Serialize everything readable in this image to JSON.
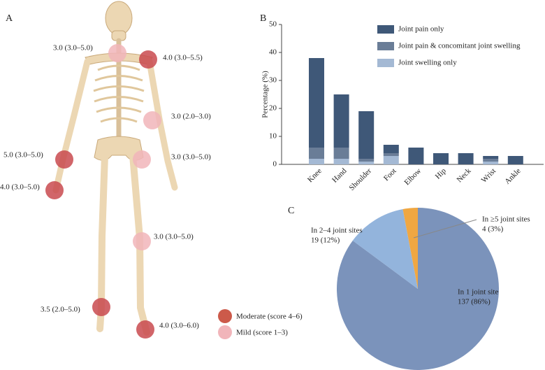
{
  "panel_labels": [
    "A",
    "B",
    "C"
  ],
  "skeleton": {
    "markers": [
      {
        "label": "3.0 (3.0–5.0)",
        "color": "#f1b5ba"
      },
      {
        "label": "4.0 (3.0–5.5)",
        "color": "#c94a4f"
      },
      {
        "label": "3.0 (2.0–3.0)",
        "color": "#f1b5ba"
      },
      {
        "label": "5.0 (3.0–5.0)",
        "color": "#c94a4f"
      },
      {
        "label": "3.0 (3.0–5.0)",
        "color": "#f1b5ba"
      },
      {
        "label": "4.0 (3.0–5.0)",
        "color": "#c94a4f"
      },
      {
        "label": "3.0 (3.0–5.0)",
        "color": "#f1b5ba"
      },
      {
        "label": "3.5 (2.0–5.0)",
        "color": "#c94a4f"
      },
      {
        "label": "4.0 (3.0–6.0)",
        "color": "#c94a4f"
      }
    ],
    "legend": [
      {
        "label": "Moderate (score 4–6)",
        "color": "#cc5a4a"
      },
      {
        "label": "Mild (score 1–3)",
        "color": "#f1b5ba"
      }
    ]
  },
  "chart_data": [
    {
      "type": "bar",
      "stacked": true,
      "ylabel": "Percentage (%)",
      "categories": [
        "Knee",
        "Hand",
        "Shoulder",
        "Foot",
        "Elbow",
        "Hip",
        "Neck",
        "Wrist",
        "Ankle"
      ],
      "series": [
        {
          "name": "Joint pain only",
          "color": "#3f5878",
          "values": [
            32,
            19,
            17,
            3,
            6,
            4,
            4,
            1,
            3
          ]
        },
        {
          "name": "Joint pain & concomitant joint swelling",
          "color": "#6a7d97",
          "values": [
            4,
            4,
            1,
            1,
            0,
            0,
            0,
            1,
            0
          ]
        },
        {
          "name": "Joint swelling only",
          "color": "#a4b9d4",
          "values": [
            2,
            2,
            1,
            3,
            0,
            0,
            0,
            1,
            0
          ]
        }
      ],
      "ylim": [
        0,
        50
      ],
      "yticks": [
        0,
        10,
        20,
        30,
        40,
        50
      ],
      "grid": false
    },
    {
      "type": "pie",
      "categories": [
        "In 1 joint site",
        "In 2–4 joint sites",
        "In ≥5 joint sites"
      ],
      "values": [
        86,
        12,
        3
      ],
      "value_labels": [
        "137 (86%)",
        "19 (12%)",
        "4 (3%)"
      ],
      "colors": [
        "#7b93bb",
        "#93b4dc",
        "#f0a742"
      ]
    }
  ]
}
